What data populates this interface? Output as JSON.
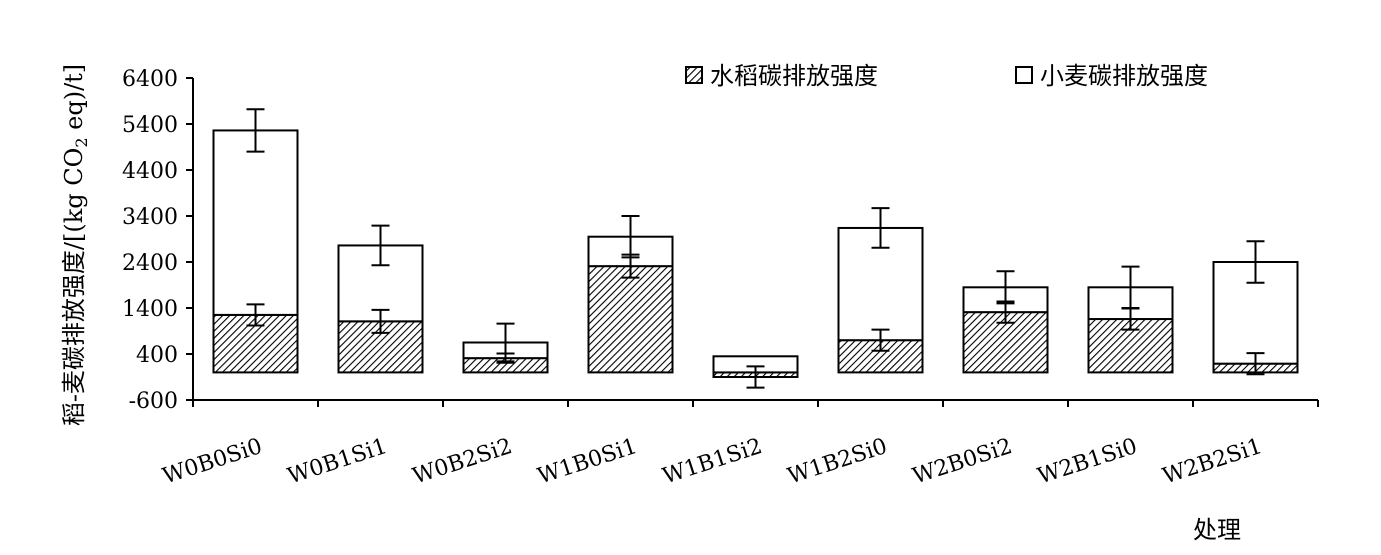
{
  "chart_data": {
    "type": "bar",
    "stacked": true,
    "title": "",
    "ylabel": "稻-麦碳排放强度/[(kg CO2 eq)/t]",
    "ylabel_parts": [
      "稻-麦碳排放强度/[(kg CO",
      "2",
      " eq)/t]"
    ],
    "xlabel": "处理",
    "ylim": [
      -600,
      6400
    ],
    "yticks": [
      -600,
      400,
      1400,
      2400,
      3400,
      4400,
      5400,
      6400
    ],
    "ytick_labels": [
      "-600",
      "400",
      "1400",
      "2400",
      "3400",
      "4400",
      "5400",
      "6400"
    ],
    "grid": false,
    "legend_position": "top-right",
    "categories": [
      "W0B0Si0",
      "W0B1Si1",
      "W0B2Si2",
      "W1B0Si1",
      "W1B1Si2",
      "W1B2Si0",
      "W2B0Si2",
      "W2B1Si0",
      "W2B2Si1"
    ],
    "series": [
      {
        "name": "水稻碳排放强度",
        "pattern": "hatched",
        "values": [
          1250,
          1110,
          310,
          2310,
          -100,
          700,
          1310,
          1160,
          190
        ],
        "error": [
          230,
          250,
          100,
          250,
          230,
          230,
          230,
          230,
          230
        ]
      },
      {
        "name": "小麦碳排放强度",
        "pattern": "white",
        "values": [
          4010,
          1650,
          340,
          640,
          350,
          2440,
          540,
          690,
          2210
        ],
        "error": [
          460,
          430,
          410,
          450,
          0,
          430,
          350,
          450,
          450
        ]
      }
    ]
  }
}
